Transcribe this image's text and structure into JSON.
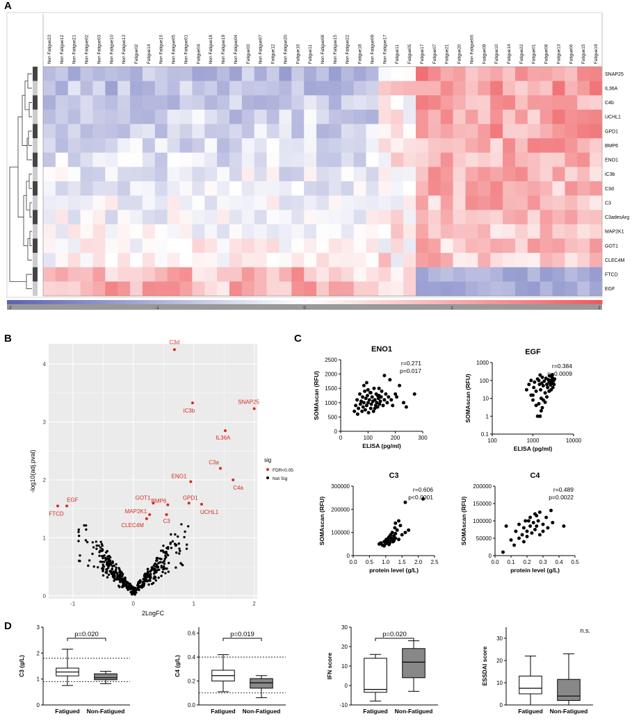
{
  "panels": {
    "a": "A",
    "b": "B",
    "c": "C",
    "d": "D"
  },
  "colors": {
    "low": "#5b63b5",
    "mid": "#ffffff",
    "high": "#ee5a5e",
    "sig": "#d62b1f",
    "nonsig": "#000000",
    "volcano_bg": "#ebebeb",
    "box_grey": "#888888"
  },
  "chart_data": [
    {
      "type": "heatmap",
      "id": "heatmap",
      "columns": [
        "Non Fatigue23",
        "Non Fatigue12",
        "Non Fatigue21",
        "Non Fatigue02",
        "Non Fatigue03",
        "Non Fatigue10",
        "Non Fatigue13",
        "Fatigue02",
        "Fatigue14",
        "Non Fatigue16",
        "Non Fatigue05",
        "Non Fatigue01",
        "Fatigue04",
        "Non Fatigue18",
        "Non Fatigue19",
        "Non Fatigue04",
        "Fatigue03",
        "Non Fatigue07",
        "Fatigue12",
        "Non Fatigue20",
        "Fatigue16",
        "Fatigue11",
        "Non Fatigue08",
        "Non Fatigue15",
        "Non Fatigue22",
        "Fatigue18",
        "Non Fatigue09",
        "Non Fatigue17",
        "Fatigue11",
        "Fatigue05",
        "Fatigue17",
        "Fatigue07",
        "Fatigue21",
        "Fatigue20",
        "Non Fatigue06",
        "Fatigue09",
        "Fatigue10",
        "Fatigue14",
        "Fatigue22",
        "Fatigue01",
        "Fatigue08",
        "Fatigue13",
        "Fatigue06",
        "Fatigue15",
        "Fatigue19"
      ],
      "rows": [
        "SNAP25",
        "IL36A",
        "C4b",
        "UCHL1",
        "GPD1",
        "BMP6",
        "ENO1",
        "iC3b",
        "C3d",
        "C3",
        "C3adesArg",
        "MAP2K1",
        "GOT1",
        "CLEC4M",
        "FTCD",
        "EGF"
      ],
      "scale_ticks": [
        "-2",
        "-1",
        "0",
        "1",
        "2"
      ],
      "range": [
        -2,
        2
      ]
    },
    {
      "type": "scatter",
      "id": "volcano",
      "xlabel": "2LogFC",
      "ylabel": "-log10(adj.pval)",
      "xticks": [
        "-1",
        "0",
        "1",
        "2"
      ],
      "yticks": [
        "0",
        "1",
        "2",
        "3",
        "4"
      ],
      "xlim": [
        -1.4,
        2.05
      ],
      "ylim": [
        -0.05,
        4.35
      ],
      "legend_title": "sig",
      "legend": [
        "FDR<0.05",
        "Not Sig"
      ],
      "labeled_points": [
        {
          "label": "C3d",
          "x": 0.68,
          "y": 4.25
        },
        {
          "label": "iC3b",
          "x": 0.98,
          "y": 3.33
        },
        {
          "label": "SNAP25",
          "x": 2.0,
          "y": 3.23
        },
        {
          "label": "IL36A",
          "x": 1.52,
          "y": 2.85
        },
        {
          "label": "C3a",
          "x": 1.44,
          "y": 2.2
        },
        {
          "label": "ENO1",
          "x": 0.95,
          "y": 1.97
        },
        {
          "label": "C4a",
          "x": 1.65,
          "y": 2.0
        },
        {
          "label": "EGF",
          "x": -1.1,
          "y": 1.55
        },
        {
          "label": "FTCD",
          "x": -1.25,
          "y": 1.55
        },
        {
          "label": "GOT1",
          "x": 0.33,
          "y": 1.6
        },
        {
          "label": "BMP6",
          "x": 0.57,
          "y": 1.57
        },
        {
          "label": "GPD1",
          "x": 0.92,
          "y": 1.6
        },
        {
          "label": "UCHL1",
          "x": 1.13,
          "y": 1.58
        },
        {
          "label": "MAP2K1",
          "x": 0.27,
          "y": 1.4
        },
        {
          "label": "CLEC4M",
          "x": 0.22,
          "y": 1.33
        },
        {
          "label": "C3",
          "x": 0.55,
          "y": 1.4
        }
      ]
    },
    {
      "type": "scatter",
      "id": "eno1",
      "title": "ENO1",
      "xlabel": "ELISA (pg/ml)",
      "ylabel": "SOMAscan (RFU)",
      "xticks": [
        "0",
        "100",
        "200",
        "300"
      ],
      "yticks": [
        "0",
        "500",
        "1000",
        "1500",
        "2000",
        "2500"
      ],
      "xlim": [
        0,
        300
      ],
      "ylim": [
        0,
        2500
      ],
      "stat_r": "r=0.271",
      "stat_p": "p=0.017",
      "points": [
        [
          50,
          700
        ],
        [
          55,
          900
        ],
        [
          60,
          1100
        ],
        [
          62,
          600
        ],
        [
          65,
          800
        ],
        [
          70,
          1300
        ],
        [
          72,
          950
        ],
        [
          75,
          1050
        ],
        [
          78,
          700
        ],
        [
          80,
          1200
        ],
        [
          82,
          850
        ],
        [
          85,
          1000
        ],
        [
          88,
          1400
        ],
        [
          90,
          750
        ],
        [
          92,
          1150
        ],
        [
          95,
          900
        ],
        [
          98,
          1250
        ],
        [
          100,
          1000
        ],
        [
          102,
          650
        ],
        [
          105,
          1100
        ],
        [
          108,
          1350
        ],
        [
          110,
          800
        ],
        [
          112,
          950
        ],
        [
          115,
          1200
        ],
        [
          118,
          1050
        ],
        [
          120,
          700
        ],
        [
          122,
          1500
        ],
        [
          125,
          1100
        ],
        [
          128,
          900
        ],
        [
          130,
          1300
        ],
        [
          132,
          1000
        ],
        [
          135,
          850
        ],
        [
          138,
          1150
        ],
        [
          140,
          1250
        ],
        [
          142,
          950
        ],
        [
          145,
          1050
        ],
        [
          148,
          1200
        ],
        [
          150,
          1400
        ],
        [
          155,
          900
        ],
        [
          160,
          1100
        ],
        [
          165,
          1300
        ],
        [
          170,
          1000
        ],
        [
          175,
          1200
        ],
        [
          180,
          1800
        ],
        [
          185,
          1100
        ],
        [
          190,
          900
        ],
        [
          200,
          1300
        ],
        [
          205,
          1200
        ],
        [
          215,
          1600
        ],
        [
          230,
          1000
        ],
        [
          240,
          850
        ],
        [
          270,
          1300
        ],
        [
          85,
          1600
        ],
        [
          95,
          1700
        ],
        [
          110,
          1350
        ],
        [
          125,
          800
        ],
        [
          140,
          1500
        ],
        [
          160,
          1950
        ],
        [
          100,
          1450
        ],
        [
          135,
          1250
        ]
      ]
    },
    {
      "type": "scatter",
      "id": "egf",
      "title": "EGF",
      "xlabel": "ELISA (pg/ml)",
      "ylabel": "SOMAscan (RFU)",
      "xticks": [
        "100",
        "1000",
        "10000"
      ],
      "yticks": [
        "0.1",
        "1",
        "10",
        "100",
        "1000"
      ],
      "xlim": [
        100,
        10000
      ],
      "ylim": [
        0.1,
        1000
      ],
      "log": true,
      "stat_r": "r=0.384",
      "stat_p": "p=0.0009",
      "points": [
        [
          700,
          30
        ],
        [
          800,
          60
        ],
        [
          900,
          100
        ],
        [
          1000,
          15
        ],
        [
          1050,
          40
        ],
        [
          1100,
          80
        ],
        [
          1200,
          25
        ],
        [
          1300,
          120
        ],
        [
          1400,
          5
        ],
        [
          1450,
          60
        ],
        [
          1500,
          200
        ],
        [
          1550,
          30
        ],
        [
          1600,
          10
        ],
        [
          1650,
          70
        ],
        [
          1700,
          150
        ],
        [
          1800,
          50
        ],
        [
          1900,
          90
        ],
        [
          2000,
          20
        ],
        [
          2100,
          130
        ],
        [
          2200,
          60
        ],
        [
          2300,
          40
        ],
        [
          2400,
          110
        ],
        [
          2500,
          80
        ],
        [
          2600,
          180
        ],
        [
          2700,
          55
        ],
        [
          2800,
          100
        ],
        [
          2900,
          70
        ],
        [
          3000,
          140
        ],
        [
          3100,
          40
        ],
        [
          3200,
          95
        ],
        [
          3300,
          60
        ],
        [
          3400,
          120
        ],
        [
          1300,
          1
        ],
        [
          1500,
          1
        ],
        [
          1600,
          2
        ],
        [
          1700,
          3
        ],
        [
          1800,
          8
        ],
        [
          2000,
          6
        ],
        [
          2200,
          12
        ],
        [
          1200,
          4
        ],
        [
          900,
          15
        ],
        [
          1000,
          8
        ],
        [
          2500,
          25
        ],
        [
          2800,
          30
        ],
        [
          3000,
          200
        ],
        [
          1400,
          100
        ]
      ]
    },
    {
      "type": "scatter",
      "id": "c3",
      "title": "C3",
      "xlabel": "protein level (g/L)",
      "ylabel": "SOMAscan (RFU)",
      "xticks": [
        "0.0",
        "0.5",
        "1.0",
        "1.5",
        "2.0",
        "2.5"
      ],
      "yticks": [
        "0",
        "100000",
        "200000",
        "300000"
      ],
      "xlim": [
        0,
        2.5
      ],
      "ylim": [
        0,
        300000
      ],
      "stat_r": "r=0.606",
      "stat_p": "p<0.0001",
      "points": [
        [
          0.8,
          50000
        ],
        [
          0.85,
          55000
        ],
        [
          0.9,
          45000
        ],
        [
          0.95,
          60000
        ],
        [
          1.0,
          65000
        ],
        [
          1.0,
          52000
        ],
        [
          1.02,
          70000
        ],
        [
          1.05,
          58000
        ],
        [
          1.08,
          75000
        ],
        [
          1.1,
          62000
        ],
        [
          1.1,
          80000
        ],
        [
          1.12,
          55000
        ],
        [
          1.15,
          90000
        ],
        [
          1.18,
          68000
        ],
        [
          1.2,
          72000
        ],
        [
          1.2,
          100000
        ],
        [
          1.22,
          60000
        ],
        [
          1.25,
          85000
        ],
        [
          1.28,
          120000
        ],
        [
          1.3,
          75000
        ],
        [
          1.3,
          95000
        ],
        [
          1.35,
          110000
        ],
        [
          1.4,
          70000
        ],
        [
          1.45,
          130000
        ],
        [
          1.5,
          90000
        ],
        [
          1.6,
          100000
        ],
        [
          1.7,
          110000
        ],
        [
          1.4,
          150000
        ],
        [
          1.3,
          140000
        ],
        [
          1.6,
          230000
        ],
        [
          2.15,
          245000
        ],
        [
          1.1,
          48000
        ],
        [
          0.95,
          42000
        ],
        [
          1.05,
          66000
        ],
        [
          1.15,
          78000
        ],
        [
          1.25,
          64000
        ]
      ]
    },
    {
      "type": "scatter",
      "id": "c4",
      "title": "C4",
      "xlabel": "protein level (g/L)",
      "ylabel": "SOMAscan (RFU)",
      "xticks": [
        "0.0",
        "0.1",
        "0.2",
        "0.3",
        "0.4",
        "0.5"
      ],
      "yticks": [
        "0",
        "50000",
        "100000",
        "150000",
        "200000"
      ],
      "xlim": [
        0,
        0.5
      ],
      "ylim": [
        0,
        200000
      ],
      "stat_r": "r=0.489",
      "stat_p": "p=0.0022",
      "points": [
        [
          0.05,
          10000
        ],
        [
          0.07,
          85000
        ],
        [
          0.12,
          30000
        ],
        [
          0.13,
          70000
        ],
        [
          0.15,
          50000
        ],
        [
          0.15,
          90000
        ],
        [
          0.17,
          60000
        ],
        [
          0.18,
          80000
        ],
        [
          0.19,
          100000
        ],
        [
          0.2,
          70000
        ],
        [
          0.2,
          55000
        ],
        [
          0.22,
          85000
        ],
        [
          0.22,
          110000
        ],
        [
          0.23,
          65000
        ],
        [
          0.24,
          95000
        ],
        [
          0.25,
          75000
        ],
        [
          0.25,
          120000
        ],
        [
          0.26,
          85000
        ],
        [
          0.27,
          100000
        ],
        [
          0.28,
          60000
        ],
        [
          0.28,
          125000
        ],
        [
          0.3,
          90000
        ],
        [
          0.3,
          70000
        ],
        [
          0.32,
          110000
        ],
        [
          0.33,
          80000
        ],
        [
          0.35,
          130000
        ],
        [
          0.36,
          95000
        ],
        [
          0.43,
          85000
        ],
        [
          0.1,
          45000
        ],
        [
          0.18,
          40000
        ],
        [
          0.21,
          100000
        ],
        [
          0.26,
          115000
        ]
      ]
    },
    {
      "type": "box",
      "id": "box-c3",
      "ylabel": "C3 (g/L)",
      "categories": [
        "Fatigued",
        "Non-Fatigued"
      ],
      "yticks": [
        "0",
        "1",
        "2",
        "3"
      ],
      "ylim": [
        0,
        3
      ],
      "pvalue": "p=0.020",
      "ref_lines": [
        0.9,
        1.8
      ],
      "boxes": [
        {
          "min": 0.75,
          "q1": 1.12,
          "median": 1.27,
          "q3": 1.42,
          "max": 2.15,
          "fill": "white"
        },
        {
          "min": 0.82,
          "q1": 0.97,
          "median": 1.05,
          "q3": 1.2,
          "max": 1.3,
          "fill": "grey"
        }
      ]
    },
    {
      "type": "box",
      "id": "box-c4",
      "ylabel": "C4 (g/L)",
      "categories": [
        "Fatigued",
        "Non-Fatigued"
      ],
      "yticks": [
        "0.0",
        "0.2",
        "0.4",
        "0.6"
      ],
      "ylim": [
        0,
        0.65
      ],
      "pvalue": "p=0.019",
      "ref_lines": [
        0.1,
        0.4
      ],
      "boxes": [
        {
          "min": 0.11,
          "q1": 0.2,
          "median": 0.245,
          "q3": 0.29,
          "max": 0.42,
          "fill": "white"
        },
        {
          "min": 0.06,
          "q1": 0.14,
          "median": 0.185,
          "q3": 0.22,
          "max": 0.245,
          "fill": "grey"
        }
      ]
    },
    {
      "type": "box",
      "id": "box-ifn",
      "ylabel": "IFN score",
      "categories": [
        "Fatigued",
        "Non-Fatigued"
      ],
      "yticks": [
        "-10",
        "0",
        "10",
        "20",
        "30"
      ],
      "ylim": [
        -10,
        30
      ],
      "pvalue": "p=0.020",
      "ref_lines": [],
      "boxes": [
        {
          "min": -8,
          "q1": -3.5,
          "median": -2,
          "q3": 14,
          "max": 16,
          "fill": "white"
        },
        {
          "min": -3,
          "q1": 4,
          "median": 12,
          "q3": 19,
          "max": 23,
          "fill": "grey"
        }
      ]
    },
    {
      "type": "box",
      "id": "box-essdai",
      "ylabel": "ESSDAI score",
      "categories": [
        "Fatigued",
        "Non-Fatigued"
      ],
      "yticks": [
        "0",
        "10",
        "20",
        "30"
      ],
      "ylim": [
        0,
        35
      ],
      "pvalue": "n.s.",
      "ref_lines": [],
      "boxes": [
        {
          "min": 0,
          "q1": 5,
          "median": 7.5,
          "q3": 13,
          "max": 22,
          "fill": "white"
        },
        {
          "min": 0,
          "q1": 2,
          "median": 4,
          "q3": 11.5,
          "max": 23,
          "fill": "grey"
        }
      ]
    }
  ]
}
